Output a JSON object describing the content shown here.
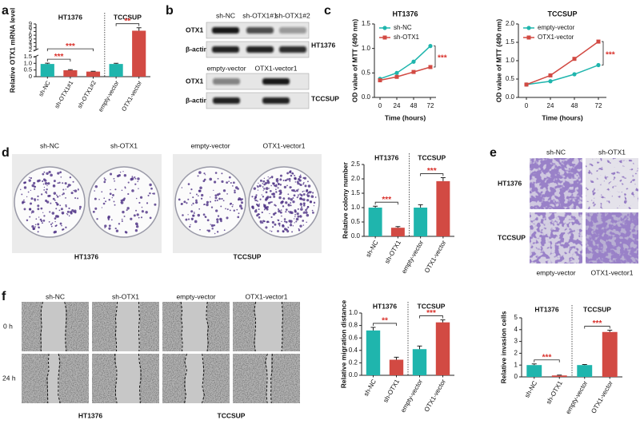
{
  "figure": {
    "panels": [
      "a",
      "b",
      "c",
      "d",
      "e",
      "f"
    ],
    "blot_ht1376": {
      "columns": [
        "sh-NC",
        "sh-OTX1#1",
        "sh-OTX1#2"
      ],
      "rows": [
        "OTX1",
        "β-actin"
      ],
      "cell_line": "HT1376"
    },
    "blot_tccsup": {
      "columns": [
        "empty-vector",
        "OTX1-vector1"
      ],
      "rows": [
        "OTX1",
        "β-actin"
      ],
      "cell_line": "TCCSUP"
    },
    "colony": {
      "columns": [
        "sh-NC",
        "sh-OTX1",
        "empty-vector",
        "OTX1-vector1"
      ],
      "groups": [
        "HT1376",
        "TCCSUP"
      ]
    },
    "wound": {
      "columns": [
        "sh-NC",
        "sh-OTX1",
        "empty-vector",
        "OTX1-vector1"
      ],
      "rows": [
        "0 h",
        "24 h"
      ],
      "groups": [
        "HT1376",
        "TCCSUP"
      ]
    },
    "transwell": {
      "columns": [
        "sh-NC",
        "sh-OTX1"
      ],
      "rows": [
        "HT1376",
        "TCCSUP"
      ],
      "bottom": [
        "empty-vector",
        "OTX1-vector1"
      ]
    }
  },
  "chart_data": [
    {
      "type": "bar",
      "ylabel": "Relative OTX1 mRNA level",
      "categories": [
        "sh-NC",
        "sh-OTX1#1",
        "sh-OTX1#2",
        "empty-vector",
        "OTX1-vector"
      ],
      "values": [
        0.95,
        0.48,
        0.38,
        0.95,
        7.2
      ],
      "errors": [
        0.06,
        0.04,
        0.02,
        0.05,
        0.8
      ],
      "colors": [
        "#1fb5ad",
        "#d24a43",
        "#d24a43",
        "#1fb5ad",
        "#d24a43"
      ],
      "groups": [
        {
          "label": "HT1376",
          "size": 3
        },
        {
          "label": "TCCSUP",
          "size": 2
        }
      ],
      "ylim": [
        0,
        9
      ],
      "ybreak": [
        1.5,
        2
      ],
      "yticks": [
        0,
        0.5,
        {
          "value": 1,
          "label": "1.0"
        },
        1.5,
        2,
        3,
        4,
        5,
        6,
        7,
        8,
        9
      ],
      "annotations": [
        {
          "text": "***",
          "pair": [
            0,
            1
          ]
        },
        {
          "text": "***",
          "pair": [
            0,
            2
          ]
        },
        {
          "text": "**",
          "pair": [
            3,
            4
          ]
        }
      ],
      "annotation_color": "#d9302a"
    },
    {
      "type": "line",
      "title": "HT1376",
      "xlabel": "Time (hours)",
      "ylabel": "OD value of MTT (490 nm)",
      "x": [
        0,
        24,
        48,
        72
      ],
      "xlim": [
        -8,
        80
      ],
      "xticks": [
        0,
        24,
        48,
        72
      ],
      "ylim": [
        0,
        1.5
      ],
      "yticks": [
        {
          "value": 0,
          "label": "0.0"
        },
        0.5,
        {
          "value": 1,
          "label": "1.0"
        },
        1.5
      ],
      "series": [
        {
          "name": "sh-NC",
          "color": "#1fb5ad",
          "marker": "circle",
          "values": [
            0.38,
            0.5,
            0.73,
            1.05
          ]
        },
        {
          "name": "sh-OTX1",
          "color": "#d24a43",
          "marker": "square",
          "values": [
            0.35,
            0.42,
            0.52,
            0.62
          ]
        }
      ],
      "legend": "upper left",
      "annotation": "***",
      "annotation_color": "#d9302a"
    },
    {
      "type": "line",
      "title": "TCCSUP",
      "xlabel": "Time (hours)",
      "ylabel": "OD value of MTT (490 nm)",
      "x": [
        0,
        24,
        48,
        72
      ],
      "xlim": [
        -8,
        80
      ],
      "xticks": [
        0,
        24,
        48,
        72
      ],
      "ylim": [
        0,
        2
      ],
      "yticks": [
        {
          "value": 0,
          "label": "0.0"
        },
        0.5,
        {
          "value": 1,
          "label": "1.0"
        },
        1.5,
        {
          "value": 2,
          "label": "2.0"
        }
      ],
      "series": [
        {
          "name": "empty-vector",
          "color": "#1fb5ad",
          "marker": "circle",
          "values": [
            0.35,
            0.44,
            0.63,
            0.88
          ]
        },
        {
          "name": "OTX1-vector",
          "color": "#d24a43",
          "marker": "square",
          "values": [
            0.35,
            0.6,
            1.05,
            1.52
          ]
        }
      ],
      "legend": "upper left",
      "annotation": "***",
      "annotation_color": "#d9302a"
    },
    {
      "type": "bar",
      "ylabel": "Relative colony number",
      "categories": [
        "sh-NC",
        "sh-OTX1",
        "empty-vector",
        "OTX1-vector"
      ],
      "values": [
        1.0,
        0.3,
        1.0,
        1.92
      ],
      "errors": [
        0.05,
        0.04,
        0.1,
        0.12
      ],
      "colors": [
        "#1fb5ad",
        "#d24a43",
        "#1fb5ad",
        "#d24a43"
      ],
      "groups": [
        {
          "label": "HT1376",
          "size": 2
        },
        {
          "label": "TCCSUP",
          "size": 2
        }
      ],
      "ylim": [
        0,
        2.5
      ],
      "yticks": [
        {
          "value": 0,
          "label": "0.0"
        },
        0.5,
        {
          "value": 1,
          "label": "1.0"
        },
        1.5,
        {
          "value": 2,
          "label": "2.0"
        },
        2.5
      ],
      "annotations": [
        {
          "text": "***",
          "pair": [
            0,
            1
          ]
        },
        {
          "text": "***",
          "pair": [
            2,
            3
          ]
        }
      ],
      "annotation_color": "#d9302a"
    },
    {
      "type": "bar",
      "ylabel": "Relative  migration distance",
      "categories": [
        "sh-NC",
        "sh-OTX1",
        "empty-vector",
        "OTX1-vector"
      ],
      "values": [
        0.72,
        0.25,
        0.42,
        0.85
      ],
      "errors": [
        0.05,
        0.04,
        0.05,
        0.04
      ],
      "colors": [
        "#1fb5ad",
        "#d24a43",
        "#1fb5ad",
        "#d24a43"
      ],
      "groups": [
        {
          "label": "HT1376",
          "size": 2
        },
        {
          "label": "TCCSUP",
          "size": 2
        }
      ],
      "ylim": [
        0,
        1
      ],
      "yticks": [
        {
          "value": 0,
          "label": "0.0"
        },
        0.2,
        0.4,
        0.6,
        0.8,
        {
          "value": 1,
          "label": "1.0"
        }
      ],
      "annotations": [
        {
          "text": "**",
          "pair": [
            0,
            1
          ]
        },
        {
          "text": "***",
          "pair": [
            2,
            3
          ]
        }
      ],
      "annotation_color": "#d9302a"
    },
    {
      "type": "bar",
      "ylabel": "Relative invasion cells",
      "categories": [
        "sh-NC",
        "sh-OTX1",
        "empty-vector",
        "OTX1-vector"
      ],
      "values": [
        1.0,
        0.12,
        1.0,
        3.8
      ],
      "errors": [
        0.1,
        0.03,
        0.05,
        0.15
      ],
      "colors": [
        "#1fb5ad",
        "#d24a43",
        "#1fb5ad",
        "#d24a43"
      ],
      "groups": [
        {
          "label": "HT1376",
          "size": 2
        },
        {
          "label": "TCCSUP",
          "size": 2
        }
      ],
      "ylim": [
        0,
        5
      ],
      "yticks": [
        0,
        1,
        2,
        3,
        4,
        5
      ],
      "annotations": [
        {
          "text": "***",
          "pair": [
            0,
            1
          ]
        },
        {
          "text": "***",
          "pair": [
            2,
            3
          ]
        }
      ],
      "annotation_color": "#d9302a"
    }
  ]
}
